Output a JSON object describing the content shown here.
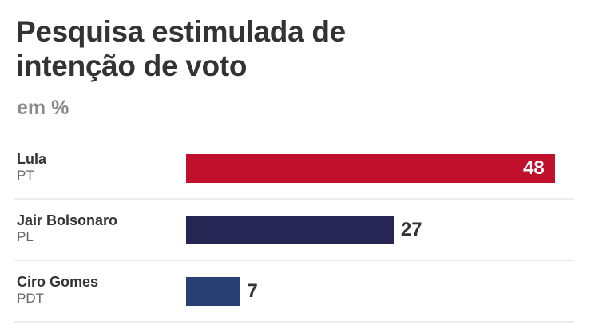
{
  "chart_data": {
    "type": "bar",
    "orientation": "horizontal",
    "title": "Pesquisa estimulada de intenção de voto",
    "title_lines": [
      "Pesquisa estimulada de",
      "intenção de voto"
    ],
    "subtitle": "em %",
    "categories": [
      "Lula",
      "Jair Bolsonaro",
      "Ciro Gomes"
    ],
    "parties": [
      "PT",
      "PL",
      "PDT"
    ],
    "values": [
      48,
      27,
      7
    ],
    "colors": [
      "#c0102c",
      "#272553",
      "#283f74"
    ],
    "xlim": [
      0,
      48
    ],
    "grid": false
  }
}
